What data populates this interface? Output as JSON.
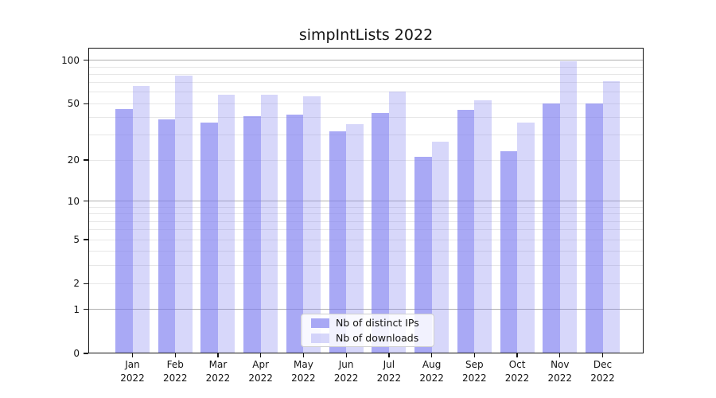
{
  "chart_data": {
    "type": "bar",
    "title": "simpIntLists 2022",
    "xlabel": "",
    "ylabel": "",
    "categories": [
      "Jan 2022",
      "Feb 2022",
      "Mar 2022",
      "Apr 2022",
      "May 2022",
      "Jun 2022",
      "Jul 2022",
      "Aug 2022",
      "Sep 2022",
      "Oct 2022",
      "Nov 2022",
      "Dec 2022"
    ],
    "series": [
      {
        "name": "Nb of distinct IPs",
        "color": "#7b7bf0",
        "alpha": 0.65,
        "values": [
          46,
          39,
          37,
          41,
          42,
          32,
          43,
          21,
          45,
          23,
          50,
          50
        ]
      },
      {
        "name": "Nb of downloads",
        "color": "#7b7bf0",
        "alpha": 0.3,
        "values": [
          66,
          78,
          58,
          58,
          56,
          36,
          61,
          27,
          53,
          37,
          98,
          72
        ]
      }
    ],
    "yscale": "log1p",
    "ylim": [
      0,
      122
    ],
    "y_major_ticks": [
      0,
      1,
      2,
      5,
      10,
      20,
      50,
      100
    ],
    "y_decade_gridlines": [
      1,
      10,
      100
    ],
    "y_minor_gridlines": [
      2,
      3,
      4,
      5,
      6,
      7,
      8,
      9,
      20,
      30,
      40,
      50,
      60,
      70,
      80,
      90
    ],
    "grid": true,
    "legend_position": "lower center",
    "grid_major_color": "#b0b0b0",
    "grid_minor_color": "#e7e7e7",
    "axis_color": "#141414"
  }
}
